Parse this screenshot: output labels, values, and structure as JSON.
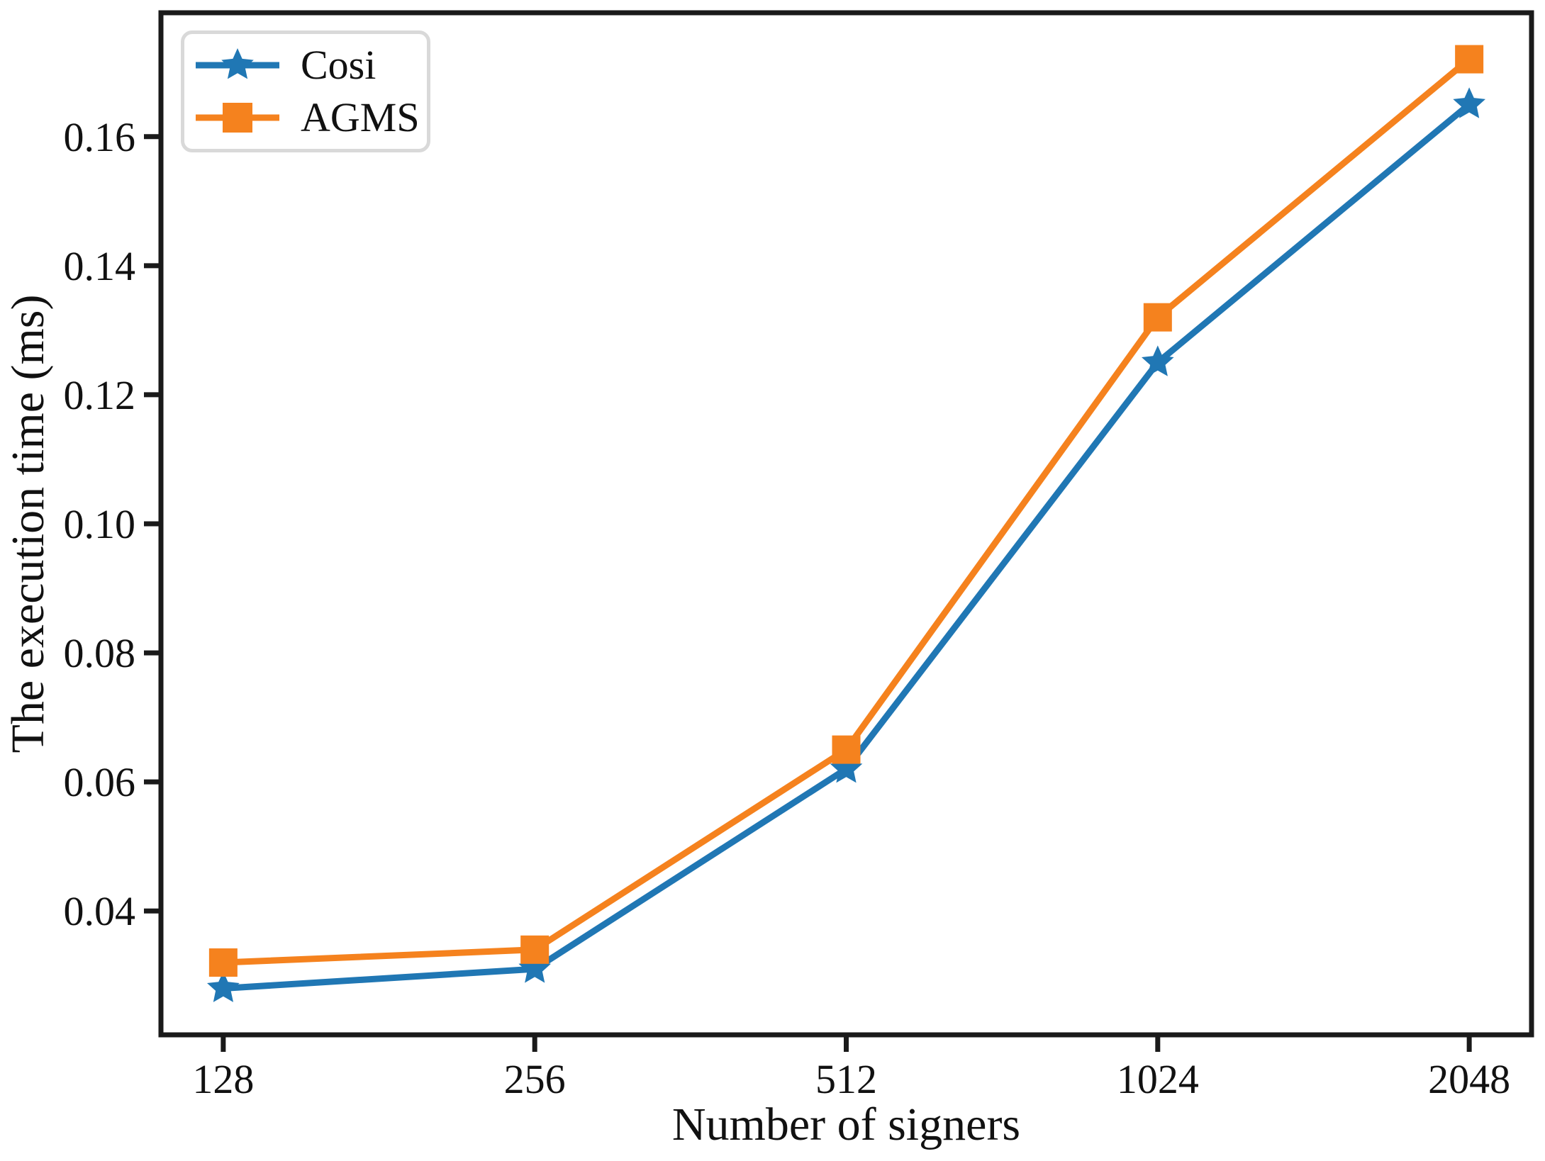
{
  "chart_data": {
    "type": "line",
    "title": "",
    "xlabel": "Number of signers",
    "ylabel": "The execution time (ms)",
    "categories": [
      "128",
      "256",
      "512",
      "1024",
      "2048"
    ],
    "series": [
      {
        "name": "Cosi",
        "color": "#2077b4",
        "marker": "star",
        "values": [
          0.028,
          0.031,
          0.062,
          0.125,
          0.165
        ]
      },
      {
        "name": "AGMS",
        "color": "#f5821e",
        "marker": "square",
        "values": [
          0.032,
          0.034,
          0.065,
          0.132,
          0.172
        ]
      }
    ],
    "yticks": [
      0.04,
      0.06,
      0.08,
      0.1,
      0.12,
      0.14,
      0.16
    ],
    "ytick_labels": [
      "0.04",
      "0.06",
      "0.08",
      "0.10",
      "0.12",
      "0.14",
      "0.16"
    ],
    "ylim": [
      0.0208,
      0.1792
    ],
    "grid": false,
    "legend_position": "upper left",
    "axis_color": "#1a1a1a",
    "legend_border_color": "#d9d9d9"
  }
}
